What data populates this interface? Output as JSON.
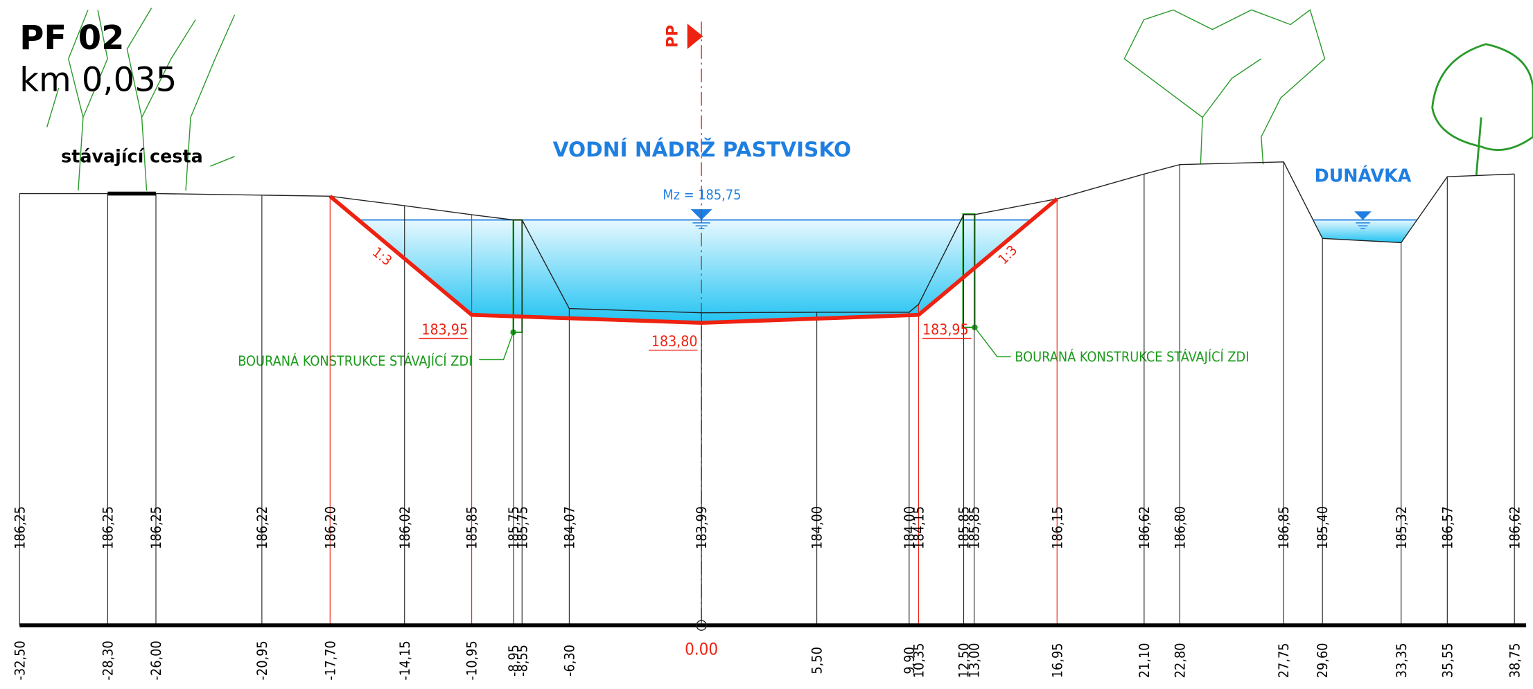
{
  "header": {
    "title": "PF 02",
    "subtitle": "km 0,035"
  },
  "labels": {
    "reservoir": "VODNÍ NÁDRŽ PASTVISKO",
    "stream": "DUNÁVKA",
    "road": "stávající cesta",
    "axis": "PP",
    "water_level": "Mz = 185,75",
    "slope_left": "1:3",
    "slope_right": "1:3",
    "wall_left": "BOURANÁ KONSTRUKCE STÁVAJÍCÍ ZDI",
    "wall_right": "BOURANÁ KONSTRUKCE STÁVAJÍCÍ ZDI"
  },
  "design_levels": [
    "183,95",
    "183,80",
    "183,95"
  ],
  "stations": [
    {
      "station": "-32,50",
      "elevation": "186,25"
    },
    {
      "station": "-28,30",
      "elevation": "186,25"
    },
    {
      "station": "-26,00",
      "elevation": "186,25"
    },
    {
      "station": "-20,95",
      "elevation": "186,22"
    },
    {
      "station": "-17,70",
      "elevation": "186,20"
    },
    {
      "station": "-14,15",
      "elevation": "186,02"
    },
    {
      "station": "-10,95",
      "elevation": "185,85"
    },
    {
      "station": "-8,95",
      "elevation": "185,75"
    },
    {
      "station": "-8,55",
      "elevation": "185,75"
    },
    {
      "station": "-6,30",
      "elevation": "184,07"
    },
    {
      "station": "0.00",
      "elevation": "183,99"
    },
    {
      "station": "5,50",
      "elevation": "184,00"
    },
    {
      "station": "9,90",
      "elevation": "184,00"
    },
    {
      "station": "10,35",
      "elevation": "184,15"
    },
    {
      "station": "12,50",
      "elevation": "185,85"
    },
    {
      "station": "13,00",
      "elevation": "185,85"
    },
    {
      "station": "16,95",
      "elevation": "186,15"
    },
    {
      "station": "21,10",
      "elevation": "186,62"
    },
    {
      "station": "22,80",
      "elevation": "186,80"
    },
    {
      "station": "27,75",
      "elevation": "186,85"
    },
    {
      "station": "29,60",
      "elevation": "185,40"
    },
    {
      "station": "33,35",
      "elevation": "185,32"
    },
    {
      "station": "35,55",
      "elevation": "186,57"
    },
    {
      "station": "38,75",
      "elevation": "186,62"
    }
  ]
}
